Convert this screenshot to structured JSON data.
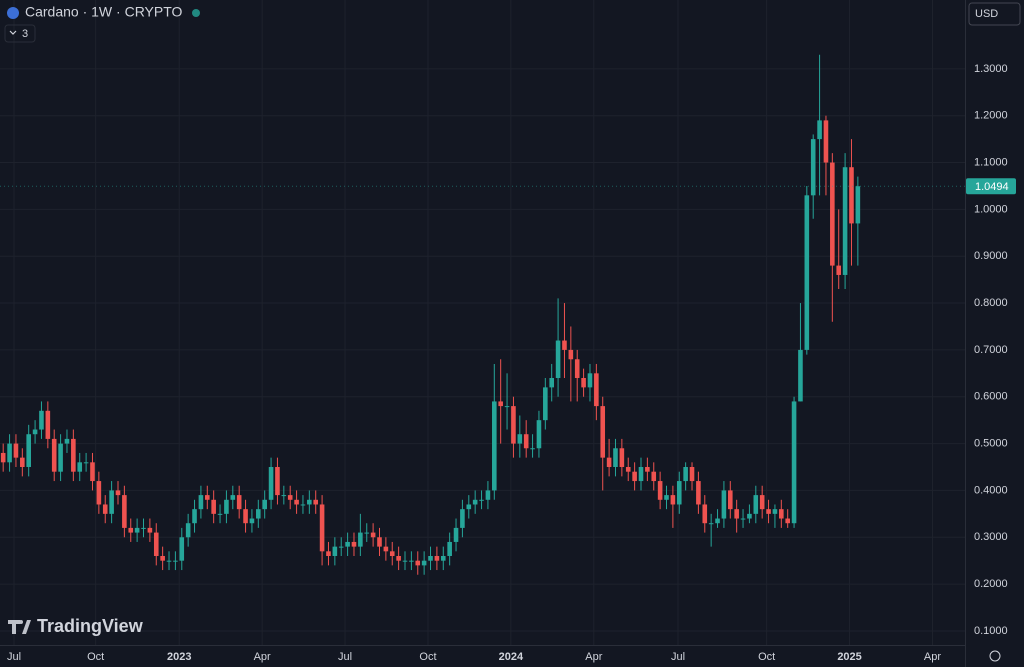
{
  "chart_data": {
    "type": "candlestick",
    "title": "Cardano · 1W · CRYPTO",
    "indicator_badge": 3,
    "currency": "USD",
    "watermark": "TradingView",
    "up_color": "#26a69a",
    "down_color": "#ef5350",
    "grid": true,
    "xlim": [
      -0.5,
      150.8
    ],
    "ylim": [
      0.07,
      1.447
    ],
    "xticks": [
      {
        "value": 1.7,
        "label": "Jul"
      },
      {
        "value": 14.5,
        "label": "Oct"
      },
      {
        "value": 27.6,
        "label": "2023"
      },
      {
        "value": 40.6,
        "label": "Apr"
      },
      {
        "value": 53.6,
        "label": "Jul"
      },
      {
        "value": 66.6,
        "label": "Oct"
      },
      {
        "value": 79.6,
        "label": "2024"
      },
      {
        "value": 92.6,
        "label": "Apr"
      },
      {
        "value": 105.8,
        "label": "Jul"
      },
      {
        "value": 119.7,
        "label": "Oct"
      },
      {
        "value": 132.7,
        "label": "2025"
      },
      {
        "value": 145.7,
        "label": "Apr"
      }
    ],
    "yticks": [
      {
        "value": 0.1,
        "label": "0.1000"
      },
      {
        "value": 0.2,
        "label": "0.2000"
      },
      {
        "value": 0.3,
        "label": "0.3000"
      },
      {
        "value": 0.4,
        "label": "0.4000"
      },
      {
        "value": 0.5,
        "label": "0.5000"
      },
      {
        "value": 0.6,
        "label": "0.6000"
      },
      {
        "value": 0.7,
        "label": "0.7000"
      },
      {
        "value": 0.8,
        "label": "0.8000"
      },
      {
        "value": 0.9,
        "label": "0.9000"
      },
      {
        "value": 1.0,
        "label": "1.0000"
      },
      {
        "value": 1.1,
        "label": "1.1000"
      },
      {
        "value": 1.2,
        "label": "1.2000"
      },
      {
        "value": 1.3,
        "label": "1.3000"
      }
    ],
    "open": [
      0.48,
      0.46,
      0.5,
      0.47,
      0.45,
      0.52,
      0.53,
      0.57,
      0.51,
      0.44,
      0.5,
      0.51,
      0.44,
      0.46,
      0.46,
      0.42,
      0.37,
      0.35,
      0.4,
      0.39,
      0.32,
      0.31,
      0.32,
      0.32,
      0.31,
      0.26,
      0.25,
      0.25,
      0.25,
      0.3,
      0.33,
      0.36,
      0.39,
      0.38,
      0.35,
      0.35,
      0.38,
      0.39,
      0.36,
      0.33,
      0.34,
      0.36,
      0.38,
      0.45,
      0.39,
      0.39,
      0.38,
      0.37,
      0.37,
      0.38,
      0.37,
      0.27,
      0.26,
      0.28,
      0.28,
      0.29,
      0.28,
      0.31,
      0.31,
      0.3,
      0.28,
      0.27,
      0.26,
      0.25,
      0.25,
      0.25,
      0.24,
      0.25,
      0.26,
      0.25,
      0.26,
      0.29,
      0.32,
      0.36,
      0.37,
      0.38,
      0.38,
      0.4,
      0.59,
      0.58,
      0.58,
      0.5,
      0.52,
      0.49,
      0.49,
      0.55,
      0.62,
      0.64,
      0.72,
      0.7,
      0.68,
      0.64,
      0.62,
      0.65,
      0.58,
      0.47,
      0.45,
      0.49,
      0.45,
      0.44,
      0.42,
      0.45,
      0.44,
      0.42,
      0.38,
      0.39,
      0.37,
      0.42,
      0.45,
      0.42,
      0.37,
      0.33,
      0.33,
      0.34,
      0.4,
      0.36,
      0.34,
      0.34,
      0.35,
      0.39,
      0.36,
      0.35,
      0.36,
      0.34,
      0.33,
      0.59,
      0.7,
      1.03,
      1.15,
      1.19,
      1.1,
      0.88,
      0.86,
      1.09,
      0.97
    ],
    "high": [
      0.5,
      0.52,
      0.52,
      0.49,
      0.54,
      0.55,
      0.59,
      0.59,
      0.53,
      0.52,
      0.53,
      0.53,
      0.48,
      0.48,
      0.48,
      0.44,
      0.39,
      0.42,
      0.42,
      0.41,
      0.34,
      0.34,
      0.34,
      0.34,
      0.33,
      0.28,
      0.27,
      0.27,
      0.32,
      0.35,
      0.38,
      0.41,
      0.41,
      0.4,
      0.37,
      0.4,
      0.41,
      0.41,
      0.38,
      0.36,
      0.38,
      0.4,
      0.47,
      0.47,
      0.41,
      0.41,
      0.4,
      0.39,
      0.4,
      0.4,
      0.39,
      0.29,
      0.3,
      0.3,
      0.31,
      0.31,
      0.35,
      0.33,
      0.33,
      0.32,
      0.3,
      0.29,
      0.28,
      0.27,
      0.27,
      0.27,
      0.27,
      0.28,
      0.28,
      0.28,
      0.31,
      0.34,
      0.38,
      0.39,
      0.4,
      0.4,
      0.42,
      0.67,
      0.68,
      0.65,
      0.6,
      0.56,
      0.55,
      0.52,
      0.57,
      0.64,
      0.67,
      0.81,
      0.8,
      0.75,
      0.7,
      0.66,
      0.67,
      0.67,
      0.6,
      0.51,
      0.51,
      0.51,
      0.47,
      0.46,
      0.47,
      0.47,
      0.46,
      0.44,
      0.41,
      0.41,
      0.44,
      0.46,
      0.46,
      0.44,
      0.39,
      0.35,
      0.36,
      0.42,
      0.42,
      0.38,
      0.36,
      0.37,
      0.41,
      0.41,
      0.38,
      0.37,
      0.38,
      0.36,
      0.6,
      0.8,
      1.05,
      1.16,
      1.33,
      1.2,
      1.12,
      1.0,
      1.12,
      1.15,
      1.07
    ],
    "low": [
      0.44,
      0.44,
      0.45,
      0.43,
      0.43,
      0.5,
      0.51,
      0.49,
      0.42,
      0.42,
      0.48,
      0.42,
      0.42,
      0.44,
      0.4,
      0.35,
      0.33,
      0.33,
      0.37,
      0.3,
      0.29,
      0.29,
      0.3,
      0.29,
      0.24,
      0.23,
      0.23,
      0.23,
      0.23,
      0.28,
      0.31,
      0.34,
      0.36,
      0.33,
      0.33,
      0.33,
      0.36,
      0.34,
      0.31,
      0.31,
      0.32,
      0.34,
      0.36,
      0.37,
      0.37,
      0.36,
      0.35,
      0.35,
      0.35,
      0.35,
      0.24,
      0.24,
      0.24,
      0.26,
      0.26,
      0.26,
      0.26,
      0.29,
      0.28,
      0.26,
      0.25,
      0.24,
      0.23,
      0.23,
      0.23,
      0.22,
      0.22,
      0.23,
      0.23,
      0.23,
      0.24,
      0.27,
      0.3,
      0.34,
      0.35,
      0.36,
      0.36,
      0.38,
      0.5,
      0.53,
      0.47,
      0.47,
      0.47,
      0.47,
      0.47,
      0.53,
      0.59,
      0.6,
      0.64,
      0.59,
      0.59,
      0.6,
      0.59,
      0.55,
      0.4,
      0.43,
      0.43,
      0.43,
      0.42,
      0.4,
      0.4,
      0.42,
      0.4,
      0.36,
      0.36,
      0.32,
      0.35,
      0.4,
      0.4,
      0.35,
      0.31,
      0.28,
      0.32,
      0.32,
      0.34,
      0.31,
      0.32,
      0.33,
      0.33,
      0.34,
      0.33,
      0.32,
      0.32,
      0.32,
      0.32,
      0.59,
      0.69,
      0.98,
      1.03,
      1.03,
      0.76,
      0.83,
      0.83,
      0.88,
      0.88
    ],
    "close": [
      0.46,
      0.5,
      0.47,
      0.45,
      0.52,
      0.53,
      0.57,
      0.51,
      0.44,
      0.5,
      0.51,
      0.44,
      0.46,
      0.46,
      0.42,
      0.37,
      0.35,
      0.4,
      0.39,
      0.32,
      0.31,
      0.32,
      0.32,
      0.31,
      0.26,
      0.25,
      0.25,
      0.25,
      0.3,
      0.33,
      0.36,
      0.39,
      0.38,
      0.35,
      0.35,
      0.38,
      0.39,
      0.36,
      0.33,
      0.34,
      0.36,
      0.38,
      0.45,
      0.39,
      0.39,
      0.38,
      0.37,
      0.37,
      0.38,
      0.37,
      0.27,
      0.26,
      0.28,
      0.28,
      0.29,
      0.28,
      0.31,
      0.31,
      0.3,
      0.28,
      0.27,
      0.26,
      0.25,
      0.25,
      0.25,
      0.24,
      0.25,
      0.26,
      0.25,
      0.26,
      0.29,
      0.32,
      0.36,
      0.37,
      0.38,
      0.38,
      0.4,
      0.59,
      0.58,
      0.58,
      0.5,
      0.52,
      0.49,
      0.49,
      0.55,
      0.62,
      0.64,
      0.72,
      0.7,
      0.68,
      0.64,
      0.62,
      0.65,
      0.58,
      0.47,
      0.45,
      0.49,
      0.45,
      0.44,
      0.42,
      0.45,
      0.44,
      0.42,
      0.38,
      0.39,
      0.37,
      0.42,
      0.45,
      0.42,
      0.37,
      0.33,
      0.33,
      0.34,
      0.4,
      0.36,
      0.34,
      0.34,
      0.35,
      0.39,
      0.36,
      0.35,
      0.36,
      0.34,
      0.33,
      0.59,
      0.7,
      1.03,
      1.15,
      1.19,
      1.1,
      0.88,
      0.86,
      1.09,
      0.97,
      1.0494
    ]
  }
}
